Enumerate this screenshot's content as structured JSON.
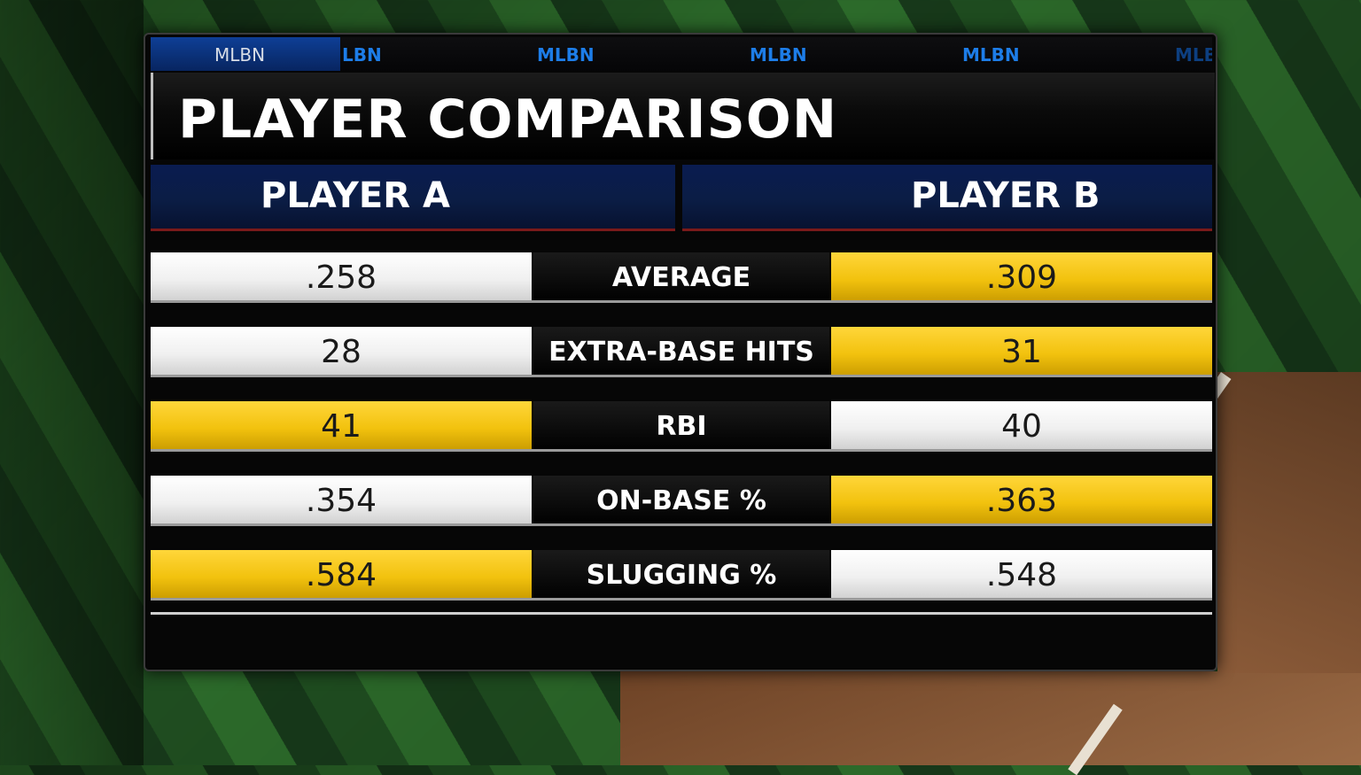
{
  "ticker": {
    "items": [
      "MLBN",
      "LBN",
      "MLBN",
      "MLBN",
      "MLBN",
      "MLB"
    ]
  },
  "title": "PLAYER COMPARISON",
  "players": {
    "a": "PLAYER A",
    "b": "PLAYER B"
  },
  "colors": {
    "leader": "#f2c20e",
    "other": "#f0f0f0",
    "header": "#0a1c50",
    "ticker_active": "#0e3f96"
  },
  "rows": [
    {
      "stat": "AVERAGE",
      "a": ".258",
      "b": ".309",
      "leader": "b"
    },
    {
      "stat": "EXTRA-BASE HITS",
      "a": "28",
      "b": "31",
      "leader": "b"
    },
    {
      "stat": "RBI",
      "a": "41",
      "b": "40",
      "leader": "a"
    },
    {
      "stat": "ON-BASE %",
      "a": ".354",
      "b": ".363",
      "leader": "b"
    },
    {
      "stat": "SLUGGING %",
      "a": ".584",
      "b": ".548",
      "leader": "a"
    }
  ]
}
